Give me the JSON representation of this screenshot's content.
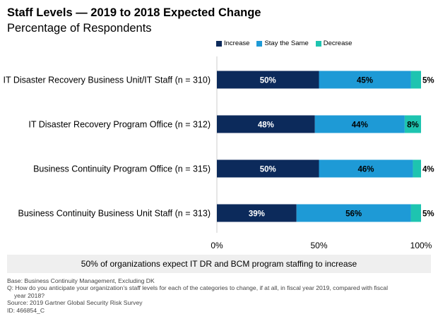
{
  "header": {
    "title": "Staff Levels — 2019 to 2018 Expected Change",
    "subtitle": "Percentage of Respondents"
  },
  "legend": {
    "items": [
      {
        "label": "Increase",
        "color": "#0c2a5b"
      },
      {
        "label": "Stay the Same",
        "color": "#1e9ad6"
      },
      {
        "label": "Decrease",
        "color": "#1ec4b0"
      }
    ]
  },
  "chart_data": {
    "type": "bar",
    "orientation": "horizontal",
    "stacked": true,
    "title": "Staff Levels — 2019 to 2018 Expected Change",
    "subtitle": "Percentage of Respondents",
    "categories": [
      "IT Disaster Recovery Business Unit/IT Staff (n = 310)",
      "IT Disaster Recovery Program Office (n = 312)",
      "Business Continuity Program Office (n = 315)",
      "Business Continuity Business Unit Staff (n = 313)"
    ],
    "series": [
      {
        "name": "Increase",
        "values": [
          50,
          48,
          50,
          39
        ],
        "labels": [
          "50%",
          "48%",
          "50%",
          "39%"
        ]
      },
      {
        "name": "Stay the Same",
        "values": [
          45,
          44,
          46,
          56
        ],
        "labels": [
          "45%",
          "44%",
          "46%",
          "56%"
        ]
      },
      {
        "name": "Decrease",
        "values": [
          5,
          8,
          4,
          5
        ],
        "labels": [
          "5%",
          "8%",
          "4%",
          "5%"
        ]
      }
    ],
    "xticks": [
      "0%",
      "50%",
      "100%"
    ],
    "xlim": [
      0,
      100
    ],
    "legend_position": "top",
    "grid": false
  },
  "callout": {
    "text": "50% of organizations expect IT DR and BCM program staffing to increase"
  },
  "footnotes": {
    "base": "Base: Business Continuity Management, Excluding DK",
    "question_line1": "Q: How do you anticipate your organization’s staff levels for each of the categories to change, if at all, in fiscal year 2019, compared with fiscal",
    "question_line2": "year 2018?",
    "source": "Source: 2019 Gartner Global Security Risk Survey",
    "id": "ID: 466854_C"
  }
}
